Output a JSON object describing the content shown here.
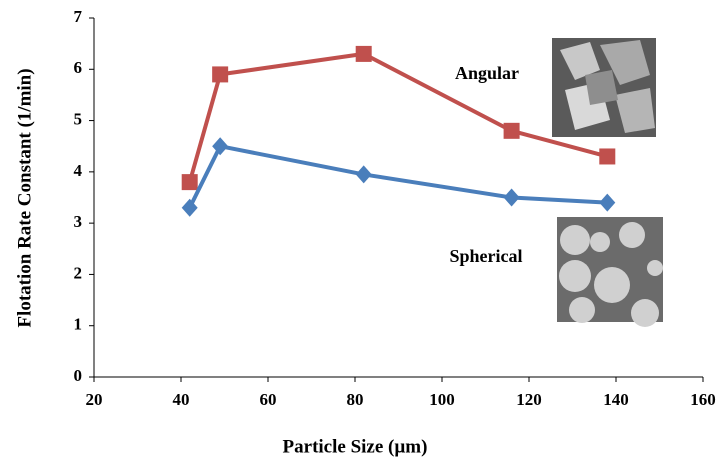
{
  "chart_data": {
    "type": "line",
    "x_label": "Particle Size (µm)",
    "y_label": "Flotation Rate Constant (1/min)",
    "x": [
      42,
      49,
      82,
      116,
      138
    ],
    "series": [
      {
        "name": "Angular",
        "color": "#c0504d",
        "marker": "square",
        "values": [
          3.8,
          5.9,
          6.3,
          4.8,
          4.3
        ]
      },
      {
        "name": "Spherical",
        "color": "#4a7ebb",
        "marker": "diamond",
        "values": [
          3.3,
          4.5,
          3.95,
          3.5,
          3.4
        ]
      }
    ],
    "xlim": [
      20,
      160
    ],
    "xticks": [
      20,
      40,
      60,
      80,
      100,
      120,
      140,
      160
    ],
    "ylim": [
      0,
      7
    ],
    "yticks": [
      0,
      1,
      2,
      3,
      4,
      5,
      6,
      7
    ],
    "grid": false
  }
}
